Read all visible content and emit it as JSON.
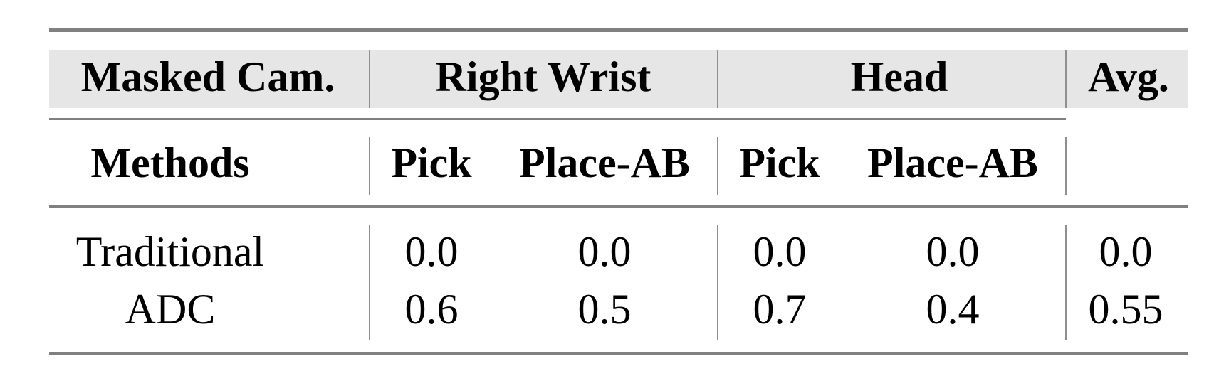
{
  "table": {
    "header_row1": {
      "masked_cam": "Masked Cam.",
      "group1": "Right Wrist",
      "group2": "Head",
      "avg": "Avg."
    },
    "header_row2": {
      "methods": "Methods",
      "columns": [
        "Pick",
        "Place-AB",
        "Pick",
        "Place-AB"
      ]
    },
    "rows": [
      {
        "method": "Traditional",
        "values": [
          "0.0",
          "0.0",
          "0.0",
          "0.0"
        ],
        "avg": "0.0"
      },
      {
        "method": "ADC",
        "values": [
          "0.6",
          "0.5",
          "0.7",
          "0.4"
        ],
        "avg": "0.55"
      }
    ],
    "header_band_color": "#e6e6e6",
    "rule_color": "#808080"
  }
}
